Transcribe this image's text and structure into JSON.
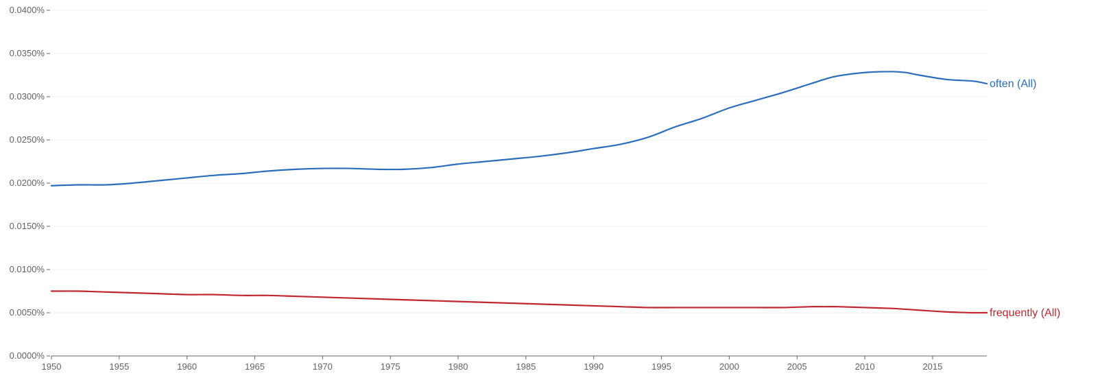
{
  "chart_data": {
    "type": "line",
    "x": [
      1950,
      1952,
      1954,
      1956,
      1958,
      1960,
      1962,
      1964,
      1966,
      1968,
      1970,
      1972,
      1974,
      1976,
      1978,
      1980,
      1982,
      1984,
      1986,
      1988,
      1990,
      1992,
      1994,
      1996,
      1998,
      2000,
      2002,
      2004,
      2006,
      2007,
      2008,
      2010,
      2012,
      2013,
      2014,
      2016,
      2018,
      2019
    ],
    "series": [
      {
        "name": "often (All)",
        "color": "#2a6ebb",
        "values": [
          0.0197,
          0.0198,
          0.0198,
          0.02,
          0.0203,
          0.0206,
          0.0209,
          0.0211,
          0.0214,
          0.0216,
          0.0217,
          0.0217,
          0.0216,
          0.0216,
          0.0218,
          0.0222,
          0.0225,
          0.0228,
          0.0231,
          0.0235,
          0.024,
          0.0245,
          0.0253,
          0.0265,
          0.0275,
          0.0287,
          0.0296,
          0.0305,
          0.0315,
          0.032,
          0.0324,
          0.0328,
          0.0329,
          0.0328,
          0.0325,
          0.032,
          0.0318,
          0.0315
        ]
      },
      {
        "name": "frequently (All)",
        "color": "#c0272d",
        "values": [
          0.0075,
          0.0075,
          0.0074,
          0.0073,
          0.0072,
          0.0071,
          0.0071,
          0.007,
          0.007,
          0.0069,
          0.0068,
          0.0067,
          0.0066,
          0.0065,
          0.0064,
          0.0063,
          0.0062,
          0.0061,
          0.006,
          0.0059,
          0.0058,
          0.0057,
          0.0056,
          0.0056,
          0.0056,
          0.0056,
          0.0056,
          0.0056,
          0.0057,
          0.0057,
          0.0057,
          0.0056,
          0.0055,
          0.0054,
          0.0053,
          0.0051,
          0.005,
          0.005
        ]
      }
    ],
    "x_ticks": [
      1950,
      1955,
      1960,
      1965,
      1970,
      1975,
      1980,
      1985,
      1990,
      1995,
      2000,
      2005,
      2010,
      2015
    ],
    "y_ticks": [
      {
        "value": 0.0,
        "label": "0.0000%"
      },
      {
        "value": 0.005,
        "label": "0.0050%"
      },
      {
        "value": 0.01,
        "label": "0.0100%"
      },
      {
        "value": 0.015,
        "label": "0.0150%"
      },
      {
        "value": 0.02,
        "label": "0.0200%"
      },
      {
        "value": 0.025,
        "label": "0.0250%"
      },
      {
        "value": 0.03,
        "label": "0.0300%"
      },
      {
        "value": 0.035,
        "label": "0.0350%"
      },
      {
        "value": 0.04,
        "label": "0.0400%"
      }
    ],
    "xlim": [
      1950,
      2019
    ],
    "ylim": [
      0,
      0.04
    ],
    "title": "",
    "xlabel": "",
    "ylabel": "",
    "grid": true,
    "legend": "end-of-line labels"
  }
}
